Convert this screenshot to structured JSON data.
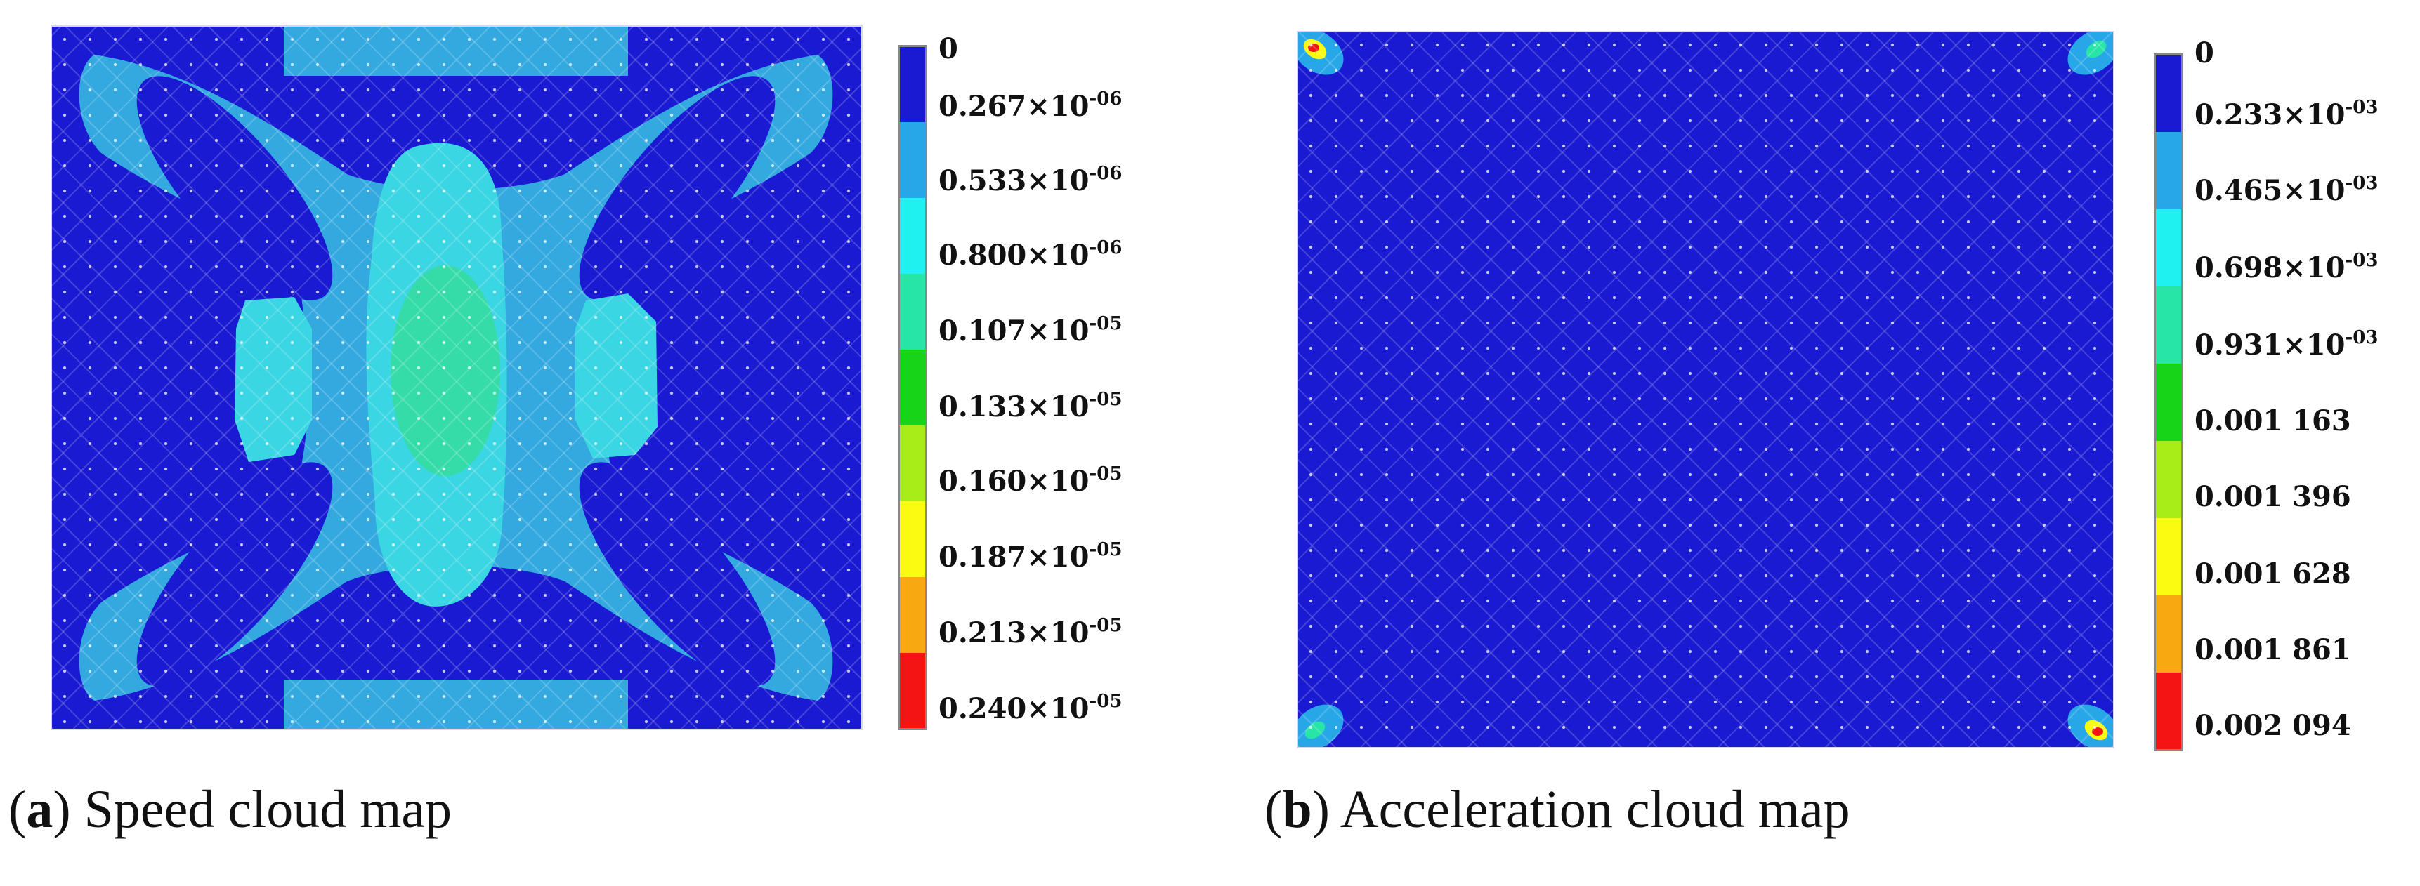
{
  "panel_a": {
    "caption_letter": "a",
    "caption_text": "Speed cloud map",
    "colorbar": {
      "ticks": [
        {
          "mantissa": "0",
          "exp": ""
        },
        {
          "mantissa": "0.267",
          "exp": "-06"
        },
        {
          "mantissa": "0.533",
          "exp": "-06"
        },
        {
          "mantissa": "0.800",
          "exp": "-06"
        },
        {
          "mantissa": "0.107",
          "exp": "-05"
        },
        {
          "mantissa": "0.133",
          "exp": "-05"
        },
        {
          "mantissa": "0.160",
          "exp": "-05"
        },
        {
          "mantissa": "0.187",
          "exp": "-05"
        },
        {
          "mantissa": "0.213",
          "exp": "-05"
        },
        {
          "mantissa": "0.240",
          "exp": "-05"
        }
      ]
    }
  },
  "panel_b": {
    "caption_letter": "b",
    "caption_text": "Acceleration cloud map",
    "colorbar": {
      "ticks": [
        {
          "mantissa": "0",
          "exp": ""
        },
        {
          "mantissa": "0.233",
          "exp": "-03"
        },
        {
          "mantissa": "0.465",
          "exp": "-03"
        },
        {
          "mantissa": "0.698",
          "exp": "-03"
        },
        {
          "mantissa": "0.931",
          "exp": "-03"
        },
        {
          "mantissa": "0.001 163",
          "exp": ""
        },
        {
          "mantissa": "0.001 396",
          "exp": ""
        },
        {
          "mantissa": "0.001 628",
          "exp": ""
        },
        {
          "mantissa": "0.001 861",
          "exp": ""
        },
        {
          "mantissa": "0.002 094",
          "exp": ""
        }
      ]
    }
  },
  "colors": {
    "band_colors": [
      "#1a1ad2",
      "#27a7e8",
      "#1ff0f0",
      "#27e5a6",
      "#18d418",
      "#a8ec18",
      "#fbfb12",
      "#f8a912",
      "#f51414"
    ],
    "map_background": "#1a1ad2",
    "speed_mid": "#33a9e0",
    "speed_core": "#3ad6e3",
    "speed_peak": "#35dca8"
  },
  "labels": {
    "times_sign": "×10"
  }
}
